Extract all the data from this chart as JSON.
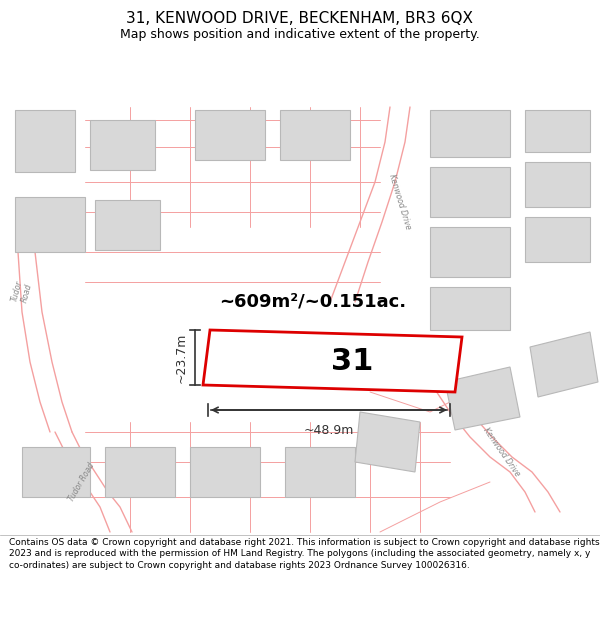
{
  "title_line1": "31, KENWOOD DRIVE, BECKENHAM, BR3 6QX",
  "title_line2": "Map shows position and indicative extent of the property.",
  "footer_text": "Contains OS data © Crown copyright and database right 2021. This information is subject to Crown copyright and database rights 2023 and is reproduced with the permission of HM Land Registry. The polygons (including the associated geometry, namely x, y co-ordinates) are subject to Crown copyright and database rights 2023 Ordnance Survey 100026316.",
  "area_label": "~609m²/~0.151ac.",
  "number_label": "31",
  "dim_width": "~48.9m",
  "dim_height": "~23.7m",
  "background_color": "#ffffff",
  "map_bg_color": "#ffffff",
  "plot_color": "#dd0000",
  "road_color": "#f4a0a0",
  "road_lw": 1.0,
  "building_color": "#d8d8d8",
  "building_stroke": "#b8b8b8",
  "text_color": "#000000",
  "title_fontsize": 11,
  "subtitle_fontsize": 9,
  "footer_fontsize": 6.5
}
